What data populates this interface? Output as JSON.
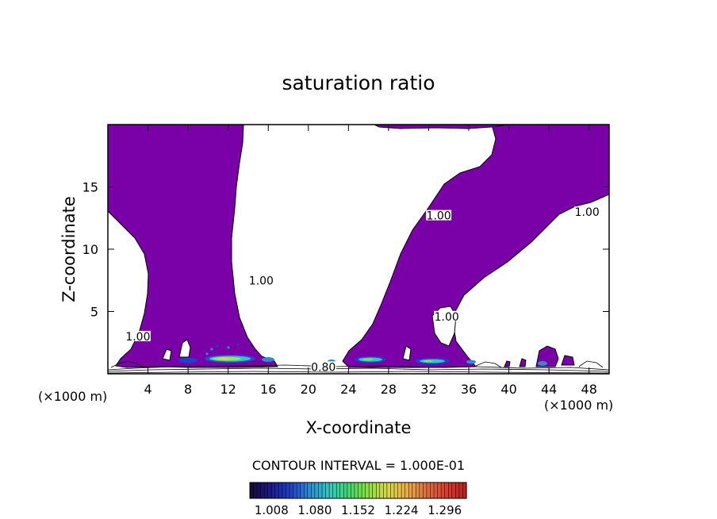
{
  "chart_data": {
    "type": "contour",
    "title": "saturation ratio",
    "xlabel": "X-coordinate",
    "ylabel": "Z-coordinate",
    "x_unit_left": "(×1000 m)",
    "x_unit_right": "(×1000 m)",
    "xlim": [
      0,
      50
    ],
    "ylim": [
      0,
      20
    ],
    "x_ticks": [
      4,
      8,
      12,
      16,
      20,
      24,
      28,
      32,
      36,
      40,
      44,
      48
    ],
    "y_ticks": [
      5,
      10,
      15
    ],
    "contour_labels": [
      {
        "text": "1.00",
        "x": 3.0,
        "y": 3.0
      },
      {
        "text": "1.00",
        "x": 15.3,
        "y": 7.5
      },
      {
        "text": "1.00",
        "x": 33.0,
        "y": 12.7
      },
      {
        "text": "1.00",
        "x": 33.8,
        "y": 4.6
      },
      {
        "text": "1.00",
        "x": 47.8,
        "y": 13.0
      },
      {
        "text": "0.80",
        "x": 21.5,
        "y": 0.55
      }
    ],
    "supersaturated_region_color": "#7a00a8",
    "contour_interval": "CONTOUR INTERVAL = 1.000E-01",
    "colorbar_ticks": [
      "1.008",
      "1.080",
      "1.152",
      "1.224",
      "1.296"
    ],
    "colorbar_range": [
      0.972,
      1.332
    ],
    "colorbar_colors": [
      "#1a0a3a",
      "#1e1a8a",
      "#2040c8",
      "#2c8cd8",
      "#30c8c0",
      "#40d870",
      "#88e040",
      "#d8d848",
      "#e8b040",
      "#e07040",
      "#d84030",
      "#c02020"
    ]
  }
}
